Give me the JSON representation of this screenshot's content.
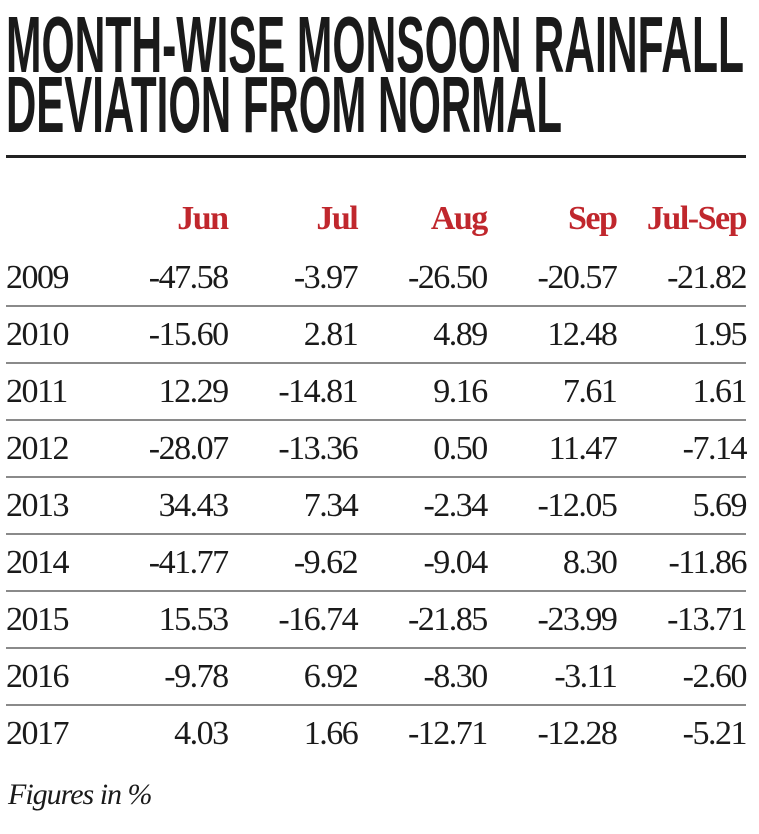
{
  "title_lines": [
    "MONTH-WISE MONSOON RAINFALL",
    "DEVIATION FROM NORMAL"
  ],
  "chart_data": {
    "type": "table",
    "title": "MONTH-WISE MONSOON RAINFALL DEVIATION FROM NORMAL",
    "columns": [
      "",
      "Jun",
      "Jul",
      "Aug",
      "Sep",
      "Jul-Sep"
    ],
    "rows": [
      [
        "2009",
        "-47.58",
        "-3.97",
        "-26.50",
        "-20.57",
        "-21.82"
      ],
      [
        "2010",
        "-15.60",
        "2.81",
        "4.89",
        "12.48",
        "1.95"
      ],
      [
        "2011",
        "12.29",
        "-14.81",
        "9.16",
        "7.61",
        "1.61"
      ],
      [
        "2012",
        "-28.07",
        "-13.36",
        "0.50",
        "11.47",
        "-7.14"
      ],
      [
        "2013",
        "34.43",
        "7.34",
        "-2.34",
        "-12.05",
        "5.69"
      ],
      [
        "2014",
        "-41.77",
        "-9.62",
        "-9.04",
        "8.30",
        "-11.86"
      ],
      [
        "2015",
        "15.53",
        "-16.74",
        "-21.85",
        "-23.99",
        "-13.71"
      ],
      [
        "2016",
        "-9.78",
        "6.92",
        "-8.30",
        "-3.11",
        "-2.60"
      ],
      [
        "2017",
        "4.03",
        "1.66",
        "-12.71",
        "-12.28",
        "-5.21"
      ]
    ],
    "note": "Figures in %"
  },
  "colors": {
    "header": "#c0272d",
    "text": "#1a1a1a",
    "rule": "#222222"
  }
}
